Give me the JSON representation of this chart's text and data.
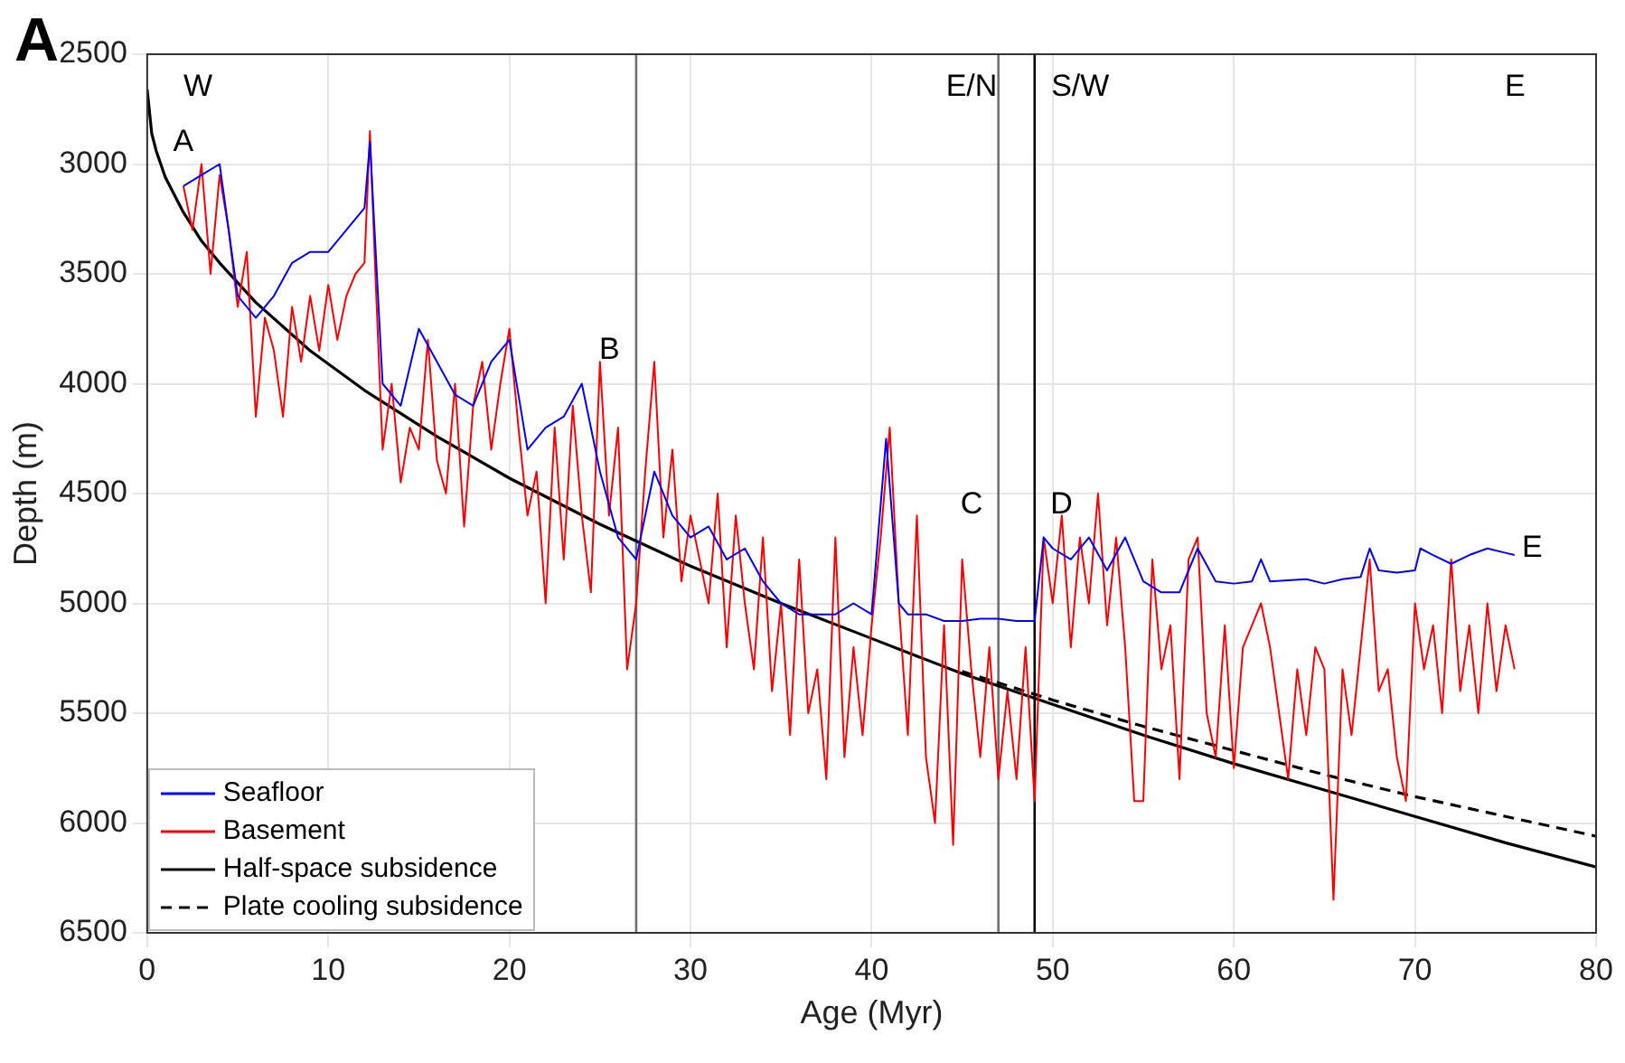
{
  "chart_data": {
    "type": "line",
    "xlabel": "Age (Myr)",
    "ylabel": "Depth (m)",
    "xlim": [
      0,
      80
    ],
    "xticks": [
      0,
      10,
      20,
      30,
      40,
      50,
      60,
      70,
      80
    ],
    "ylim": [
      6500,
      2500
    ],
    "yticks": [
      2500,
      3000,
      3500,
      4000,
      4500,
      5000,
      5500,
      6000,
      6500
    ],
    "grid": true,
    "legend": "bottom left",
    "marker": "none",
    "annotations": [
      "A",
      "W",
      "E/N",
      "S/W",
      "E",
      "A",
      "B",
      "C",
      "D",
      "E"
    ],
    "ref_lines": [
      {
        "axis": "x",
        "value": 27,
        "color": "#707070"
      },
      {
        "axis": "x",
        "value": 47,
        "color": "#707070"
      },
      {
        "axis": "x",
        "value": 49,
        "color": "#000000"
      }
    ],
    "series": [
      {
        "name": "Seafloor",
        "color": "#0000ff",
        "x": [
          2,
          3,
          4,
          5,
          6,
          7,
          8,
          9,
          10,
          11,
          12,
          12.3,
          13,
          14,
          15,
          16,
          17,
          18,
          19,
          20,
          21,
          22,
          23,
          24,
          25,
          26,
          27,
          28,
          29,
          30,
          31,
          32,
          33,
          34,
          35,
          36,
          37,
          38,
          39,
          40,
          40.8,
          41.5,
          42,
          43,
          44,
          45,
          46,
          47,
          48,
          49,
          49.5,
          50,
          51,
          52,
          53,
          54,
          55,
          56,
          57,
          58,
          59,
          60,
          61,
          61.5,
          62,
          64,
          65,
          66,
          67,
          67.5,
          68,
          69,
          70,
          70.3,
          71,
          72,
          73,
          74,
          75,
          75.5
        ],
        "values": [
          3100,
          3050,
          3000,
          3600,
          3700,
          3600,
          3450,
          3400,
          3400,
          3300,
          3200,
          2900,
          4000,
          4100,
          3750,
          3900,
          4050,
          4100,
          3900,
          3800,
          4300,
          4200,
          4150,
          4000,
          4400,
          4700,
          4800,
          4400,
          4600,
          4700,
          4650,
          4800,
          4750,
          4900,
          5000,
          5050,
          5050,
          5050,
          5000,
          5050,
          4250,
          5000,
          5050,
          5050,
          5080,
          5080,
          5070,
          5070,
          5080,
          5080,
          4700,
          4750,
          4800,
          4700,
          4850,
          4700,
          4900,
          4950,
          4950,
          4750,
          4900,
          4910,
          4900,
          4800,
          4900,
          4890,
          4910,
          4890,
          4880,
          4750,
          4850,
          4860,
          4850,
          4750,
          4780,
          4820,
          4780,
          4750,
          4770,
          4780
        ]
      },
      {
        "name": "Basement",
        "color": "#ff0000",
        "x": [
          2,
          2.5,
          3,
          3.5,
          4,
          4.5,
          5,
          5.5,
          6,
          6.5,
          7,
          7.5,
          8,
          8.5,
          9,
          9.5,
          10,
          10.5,
          11,
          11.5,
          12,
          12.3,
          12.6,
          13,
          13.5,
          14,
          14.5,
          15,
          15.5,
          16,
          16.5,
          17,
          17.5,
          18,
          18.5,
          19,
          19.5,
          20,
          20.5,
          21,
          21.5,
          22,
          22.5,
          23,
          23.5,
          24,
          24.5,
          25,
          25.5,
          26,
          26.5,
          27,
          27.5,
          28,
          28.5,
          29,
          29.5,
          30,
          30.5,
          31,
          31.5,
          32,
          32.5,
          33,
          33.5,
          34,
          34.5,
          35,
          35.5,
          36,
          36.5,
          37,
          37.5,
          38,
          38.5,
          39,
          39.5,
          40,
          40.5,
          41,
          41.5,
          42,
          42.5,
          43,
          43.5,
          44,
          44.5,
          45,
          45.5,
          46,
          46.5,
          47,
          47.5,
          48,
          48.5,
          49,
          49.5,
          50,
          50.5,
          51,
          51.5,
          52,
          52.5,
          53,
          53.5,
          54,
          54.5,
          55,
          55.5,
          56,
          56.5,
          57,
          57.5,
          58,
          58.5,
          59,
          59.5,
          60,
          60.5,
          61,
          61.5,
          62,
          62.5,
          63,
          63.5,
          64,
          64.5,
          65,
          65.5,
          66,
          66.5,
          67,
          67.5,
          68,
          68.5,
          69,
          69.5,
          70,
          70.5,
          71,
          71.5,
          72,
          72.5,
          73,
          73.5,
          74,
          74.5,
          75,
          75.5
        ],
        "values": [
          3100,
          3300,
          3000,
          3500,
          3050,
          3300,
          3650,
          3400,
          4150,
          3700,
          3850,
          4150,
          3650,
          3900,
          3600,
          3850,
          3550,
          3800,
          3600,
          3500,
          3450,
          2850,
          3500,
          4300,
          4000,
          4450,
          4200,
          4300,
          3800,
          4350,
          4500,
          4000,
          4650,
          4100,
          3900,
          4300,
          4000,
          3750,
          4200,
          4600,
          4400,
          5000,
          4200,
          4800,
          4100,
          4600,
          4950,
          3900,
          4600,
          4200,
          5300,
          5000,
          4400,
          3900,
          4700,
          4300,
          4900,
          4600,
          4800,
          5000,
          4500,
          5200,
          4600,
          5000,
          5300,
          4700,
          5400,
          5000,
          5600,
          4800,
          5500,
          5300,
          5800,
          4700,
          5700,
          5200,
          5600,
          5100,
          4700,
          4200,
          5000,
          5600,
          4600,
          5700,
          6000,
          5100,
          6100,
          4800,
          5300,
          5700,
          5200,
          5800,
          5400,
          5800,
          5200,
          5900,
          4700,
          5000,
          4600,
          5200,
          4700,
          5000,
          4500,
          5100,
          4700,
          5200,
          5900,
          5900,
          4800,
          5300,
          5100,
          5800,
          4800,
          4700,
          5500,
          5700,
          5100,
          5750,
          5200,
          5100,
          5000,
          5200,
          5500,
          5800,
          5300,
          5600,
          5200,
          5300,
          6350,
          5300,
          5600,
          5200,
          4800,
          5400,
          5300,
          5700,
          5900,
          5000,
          5300,
          5100,
          5500,
          4800,
          5400,
          5100,
          5500,
          5000,
          5400,
          5100,
          5300
        ]
      },
      {
        "name": "Half-space subsidence",
        "color": "#000000",
        "line_style": "solid",
        "x": [
          0,
          0.25,
          0.5,
          1,
          2,
          3,
          4,
          6,
          9,
          12,
          16,
          20,
          25,
          30,
          35,
          40,
          45,
          50,
          55,
          60,
          65,
          70,
          75,
          80
        ],
        "values": [
          2660,
          2860,
          2940,
          3060,
          3220,
          3350,
          3450,
          3630,
          3850,
          4030,
          4240,
          4430,
          4640,
          4830,
          5000,
          5160,
          5320,
          5460,
          5600,
          5730,
          5850,
          5970,
          6090,
          6200
        ]
      },
      {
        "name": "Plate cooling subsidence",
        "color": "#000000",
        "line_style": "dashed",
        "x": [
          45,
          50,
          55,
          60,
          65,
          70,
          75,
          80
        ],
        "values": [
          5310,
          5440,
          5560,
          5670,
          5780,
          5880,
          5970,
          6060
        ]
      }
    ]
  }
}
